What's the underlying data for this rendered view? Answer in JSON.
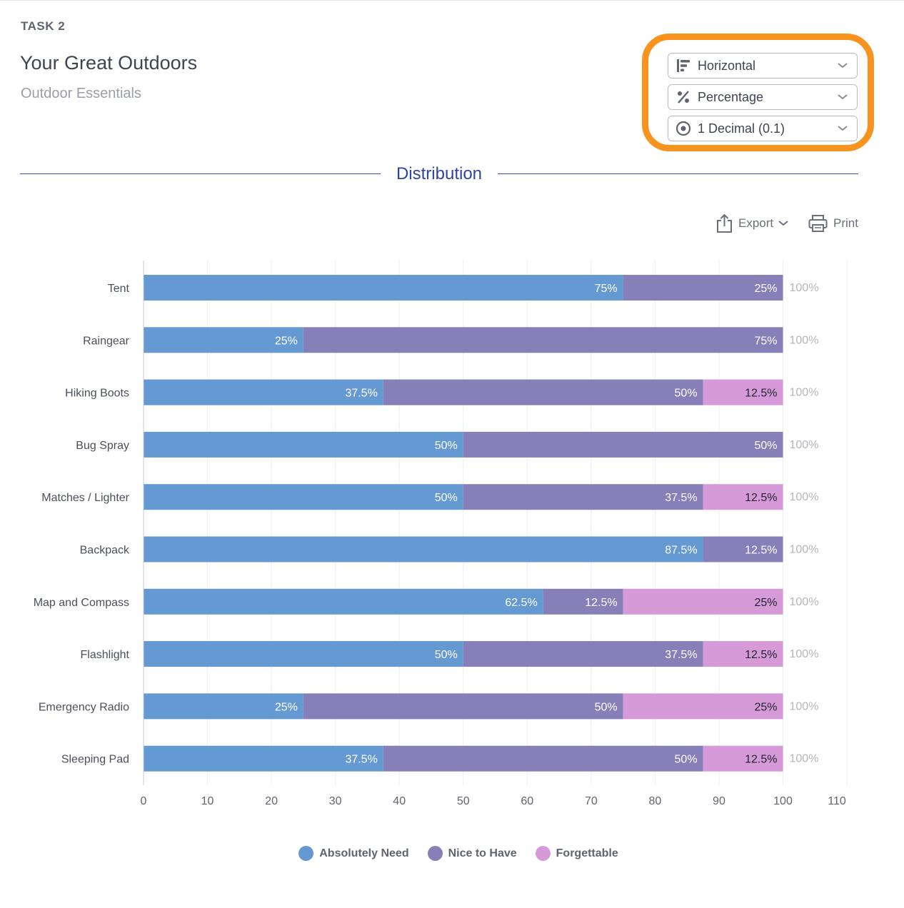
{
  "header": {
    "task_label": "TASK 2",
    "title": "Your Great Outdoors",
    "subtitle": "Outdoor Essentials"
  },
  "controls": {
    "orientation": {
      "label": "Horizontal",
      "icon": "horizontal-bars-icon"
    },
    "value_mode": {
      "label": "Percentage",
      "icon": "percent-icon"
    },
    "precision": {
      "label": "1 Decimal (0.1)",
      "icon": "target-icon"
    },
    "highlight_color": "#f7931e"
  },
  "section": {
    "title": "Distribution"
  },
  "toolbar": {
    "export_label": "Export",
    "print_label": "Print"
  },
  "chart_data": {
    "type": "bar",
    "orientation": "horizontal",
    "stacked": true,
    "categories": [
      "Tent",
      "Raingear",
      "Hiking Boots",
      "Bug Spray",
      "Matches / Lighter",
      "Backpack",
      "Map and Compass",
      "Flashlight",
      "Emergency Radio",
      "Sleeping Pad"
    ],
    "series": [
      {
        "name": "Absolutely Need",
        "color": "#6499d1",
        "values": [
          75,
          25,
          37.5,
          50,
          50,
          87.5,
          62.5,
          50,
          25,
          37.5
        ],
        "labels": [
          "75%",
          "25%",
          "37.5%",
          "50%",
          "50%",
          "87.5%",
          "62.5%",
          "50%",
          "25%",
          "37.5%"
        ]
      },
      {
        "name": "Nice to Have",
        "color": "#877fb7",
        "values": [
          25,
          75,
          50,
          50,
          37.5,
          12.5,
          12.5,
          37.5,
          50,
          50
        ],
        "labels": [
          "25%",
          "75%",
          "50%",
          "50%",
          "37.5%",
          "12.5%",
          "12.5%",
          "37.5%",
          "50%",
          "50%"
        ]
      },
      {
        "name": "Forgettable",
        "color": "#d79ad9",
        "values": [
          0,
          0,
          12.5,
          0,
          12.5,
          0,
          25,
          12.5,
          25,
          12.5
        ],
        "labels": [
          "",
          "",
          "12.5%",
          "",
          "12.5%",
          "",
          "25%",
          "12.5%",
          "25%",
          "12.5%"
        ]
      }
    ],
    "totals": [
      "100%",
      "100%",
      "100%",
      "100%",
      "100%",
      "100%",
      "100%",
      "100%",
      "100%",
      "100%"
    ],
    "xlim": [
      0,
      110
    ],
    "xticks": [
      "0",
      "10",
      "20",
      "30",
      "40",
      "50",
      "60",
      "70",
      "80",
      "90",
      "100",
      "110"
    ],
    "grid": true,
    "legend_position": "bottom"
  }
}
